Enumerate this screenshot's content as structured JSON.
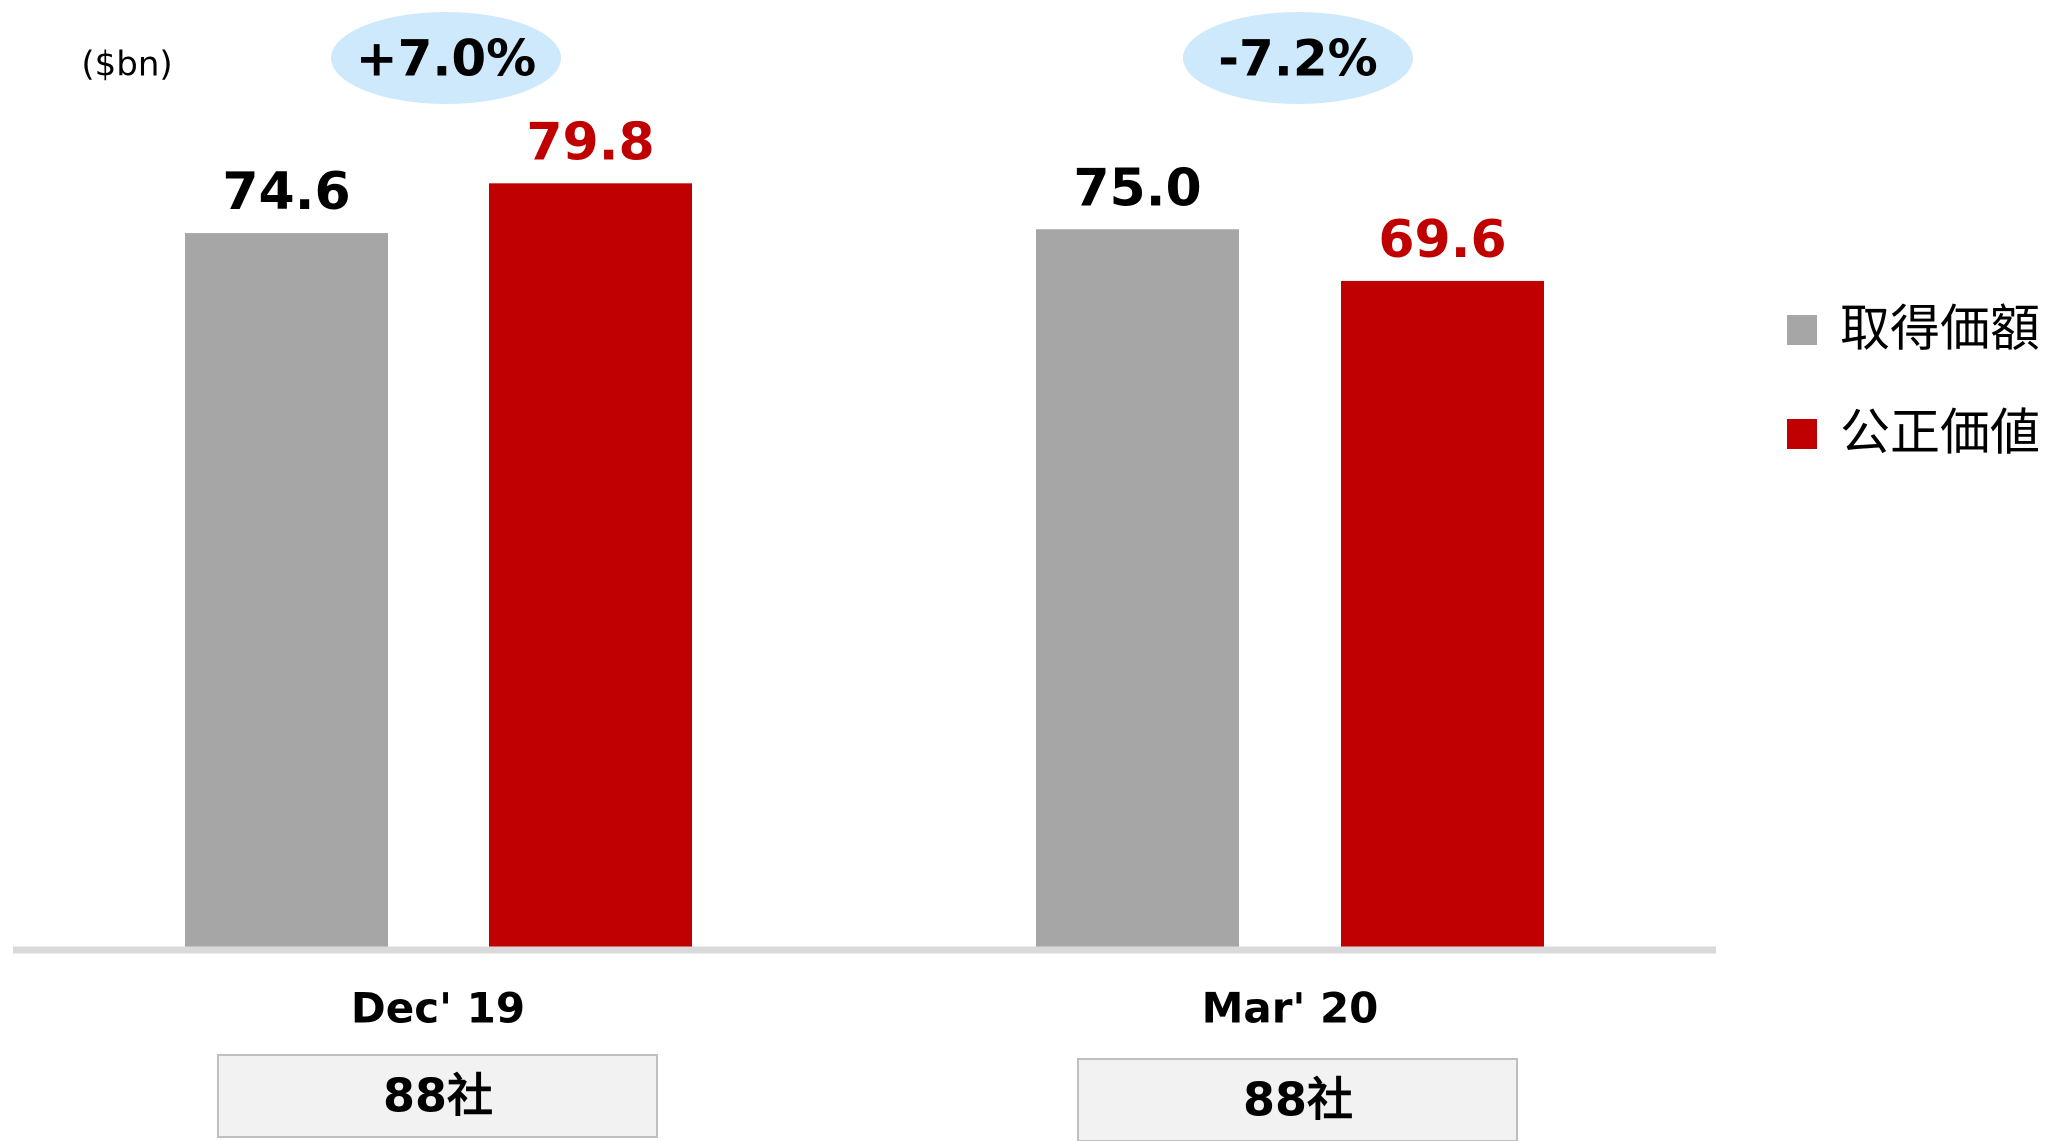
{
  "chart_data": {
    "type": "bar",
    "unit_label": "($bn)",
    "categories": [
      "Dec' 19",
      "Mar' 20"
    ],
    "series": [
      {
        "name": "取得価額",
        "color": "#a6a6a6",
        "label_color": "#000000",
        "values": [
          74.6,
          75.0
        ],
        "value_labels": [
          "74.6",
          "75.0"
        ]
      },
      {
        "name": "公正価値",
        "color": "#c00000",
        "label_color": "#c00000",
        "values": [
          79.8,
          69.6
        ],
        "value_labels": [
          "79.8",
          "69.6"
        ]
      }
    ],
    "annotations": [
      "+7.0%",
      "-7.2%"
    ],
    "category_notes": [
      "88社",
      "88社"
    ],
    "ylim": [
      0,
      100
    ],
    "legend": "right"
  }
}
